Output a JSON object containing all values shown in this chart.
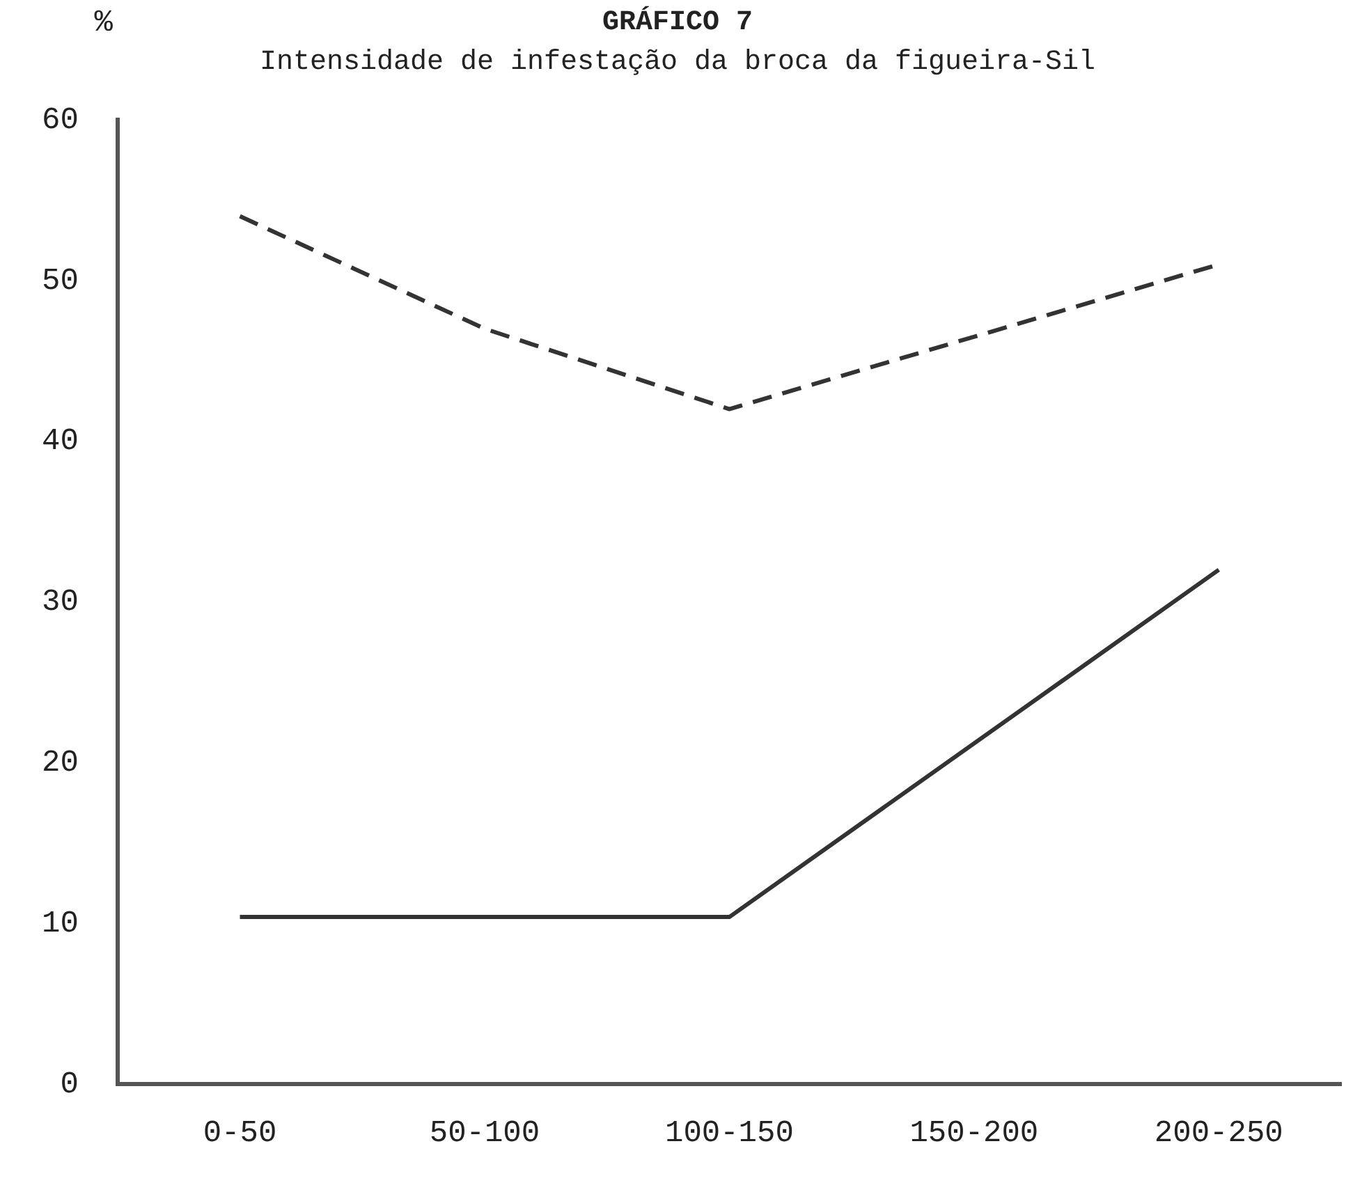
{
  "chart_data": {
    "type": "line",
    "title": "GRÁFICO 7",
    "subtitle": "Intensidade de infestação da broca da figueira-Sil",
    "ylabel": "%",
    "categories": [
      "0-50",
      "50-100",
      "100-150",
      "150-200",
      "200-250"
    ],
    "series": [
      {
        "color": "#333333",
        "line_style": "dashed",
        "values": [
          54,
          47,
          42,
          null,
          51
        ]
      },
      {
        "color": "#333333",
        "line_style": "solid",
        "values": [
          10.4,
          null,
          10.4,
          null,
          32
        ]
      }
    ],
    "ylim": [
      0,
      60
    ],
    "yticks": [
      0,
      10,
      20,
      30,
      40,
      50,
      60
    ],
    "grid": false,
    "legend": false,
    "marker": "none"
  }
}
